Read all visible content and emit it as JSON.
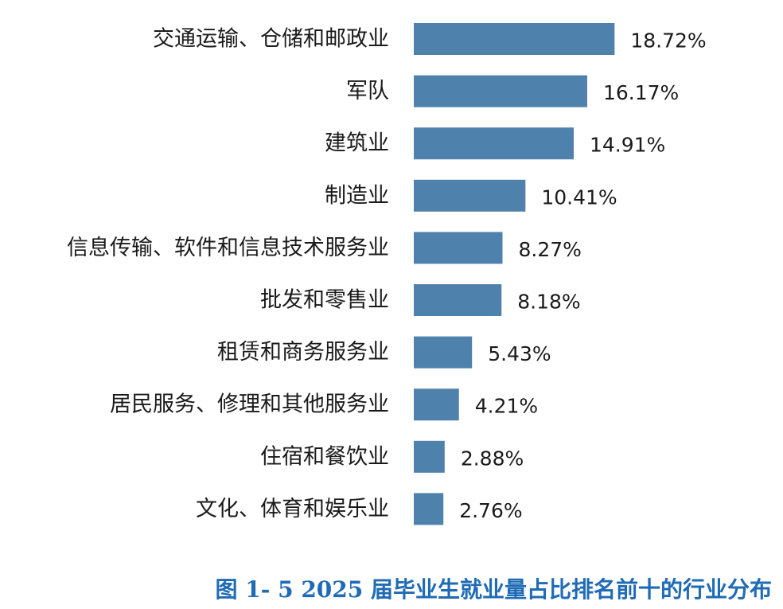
{
  "chart_data": {
    "type": "bar",
    "orientation": "horizontal",
    "categories": [
      "交通运输、仓储和邮政业",
      "军队",
      "建筑业",
      "制造业",
      "信息传输、软件和信息技术服务业",
      "批发和零售业",
      "租赁和商务服务业",
      "居民服务、修理和其他服务业",
      "住宿和餐饮业",
      "文化、体育和娱乐业"
    ],
    "values": [
      18.72,
      16.17,
      14.91,
      10.41,
      8.27,
      8.18,
      5.43,
      4.21,
      2.88,
      2.76
    ],
    "value_labels": [
      "18.72%",
      "16.17%",
      "14.91%",
      "10.41%",
      "8.27%",
      "8.18%",
      "5.43%",
      "4.21%",
      "2.88%",
      "2.76%"
    ],
    "unit": "%",
    "bar_color": "#4f81ad",
    "grid": false,
    "legend": "none"
  },
  "caption": "图 1- 5  2025 届毕业生就业量占比排名前十的行业分布",
  "caption_color": "#1f6bb5"
}
